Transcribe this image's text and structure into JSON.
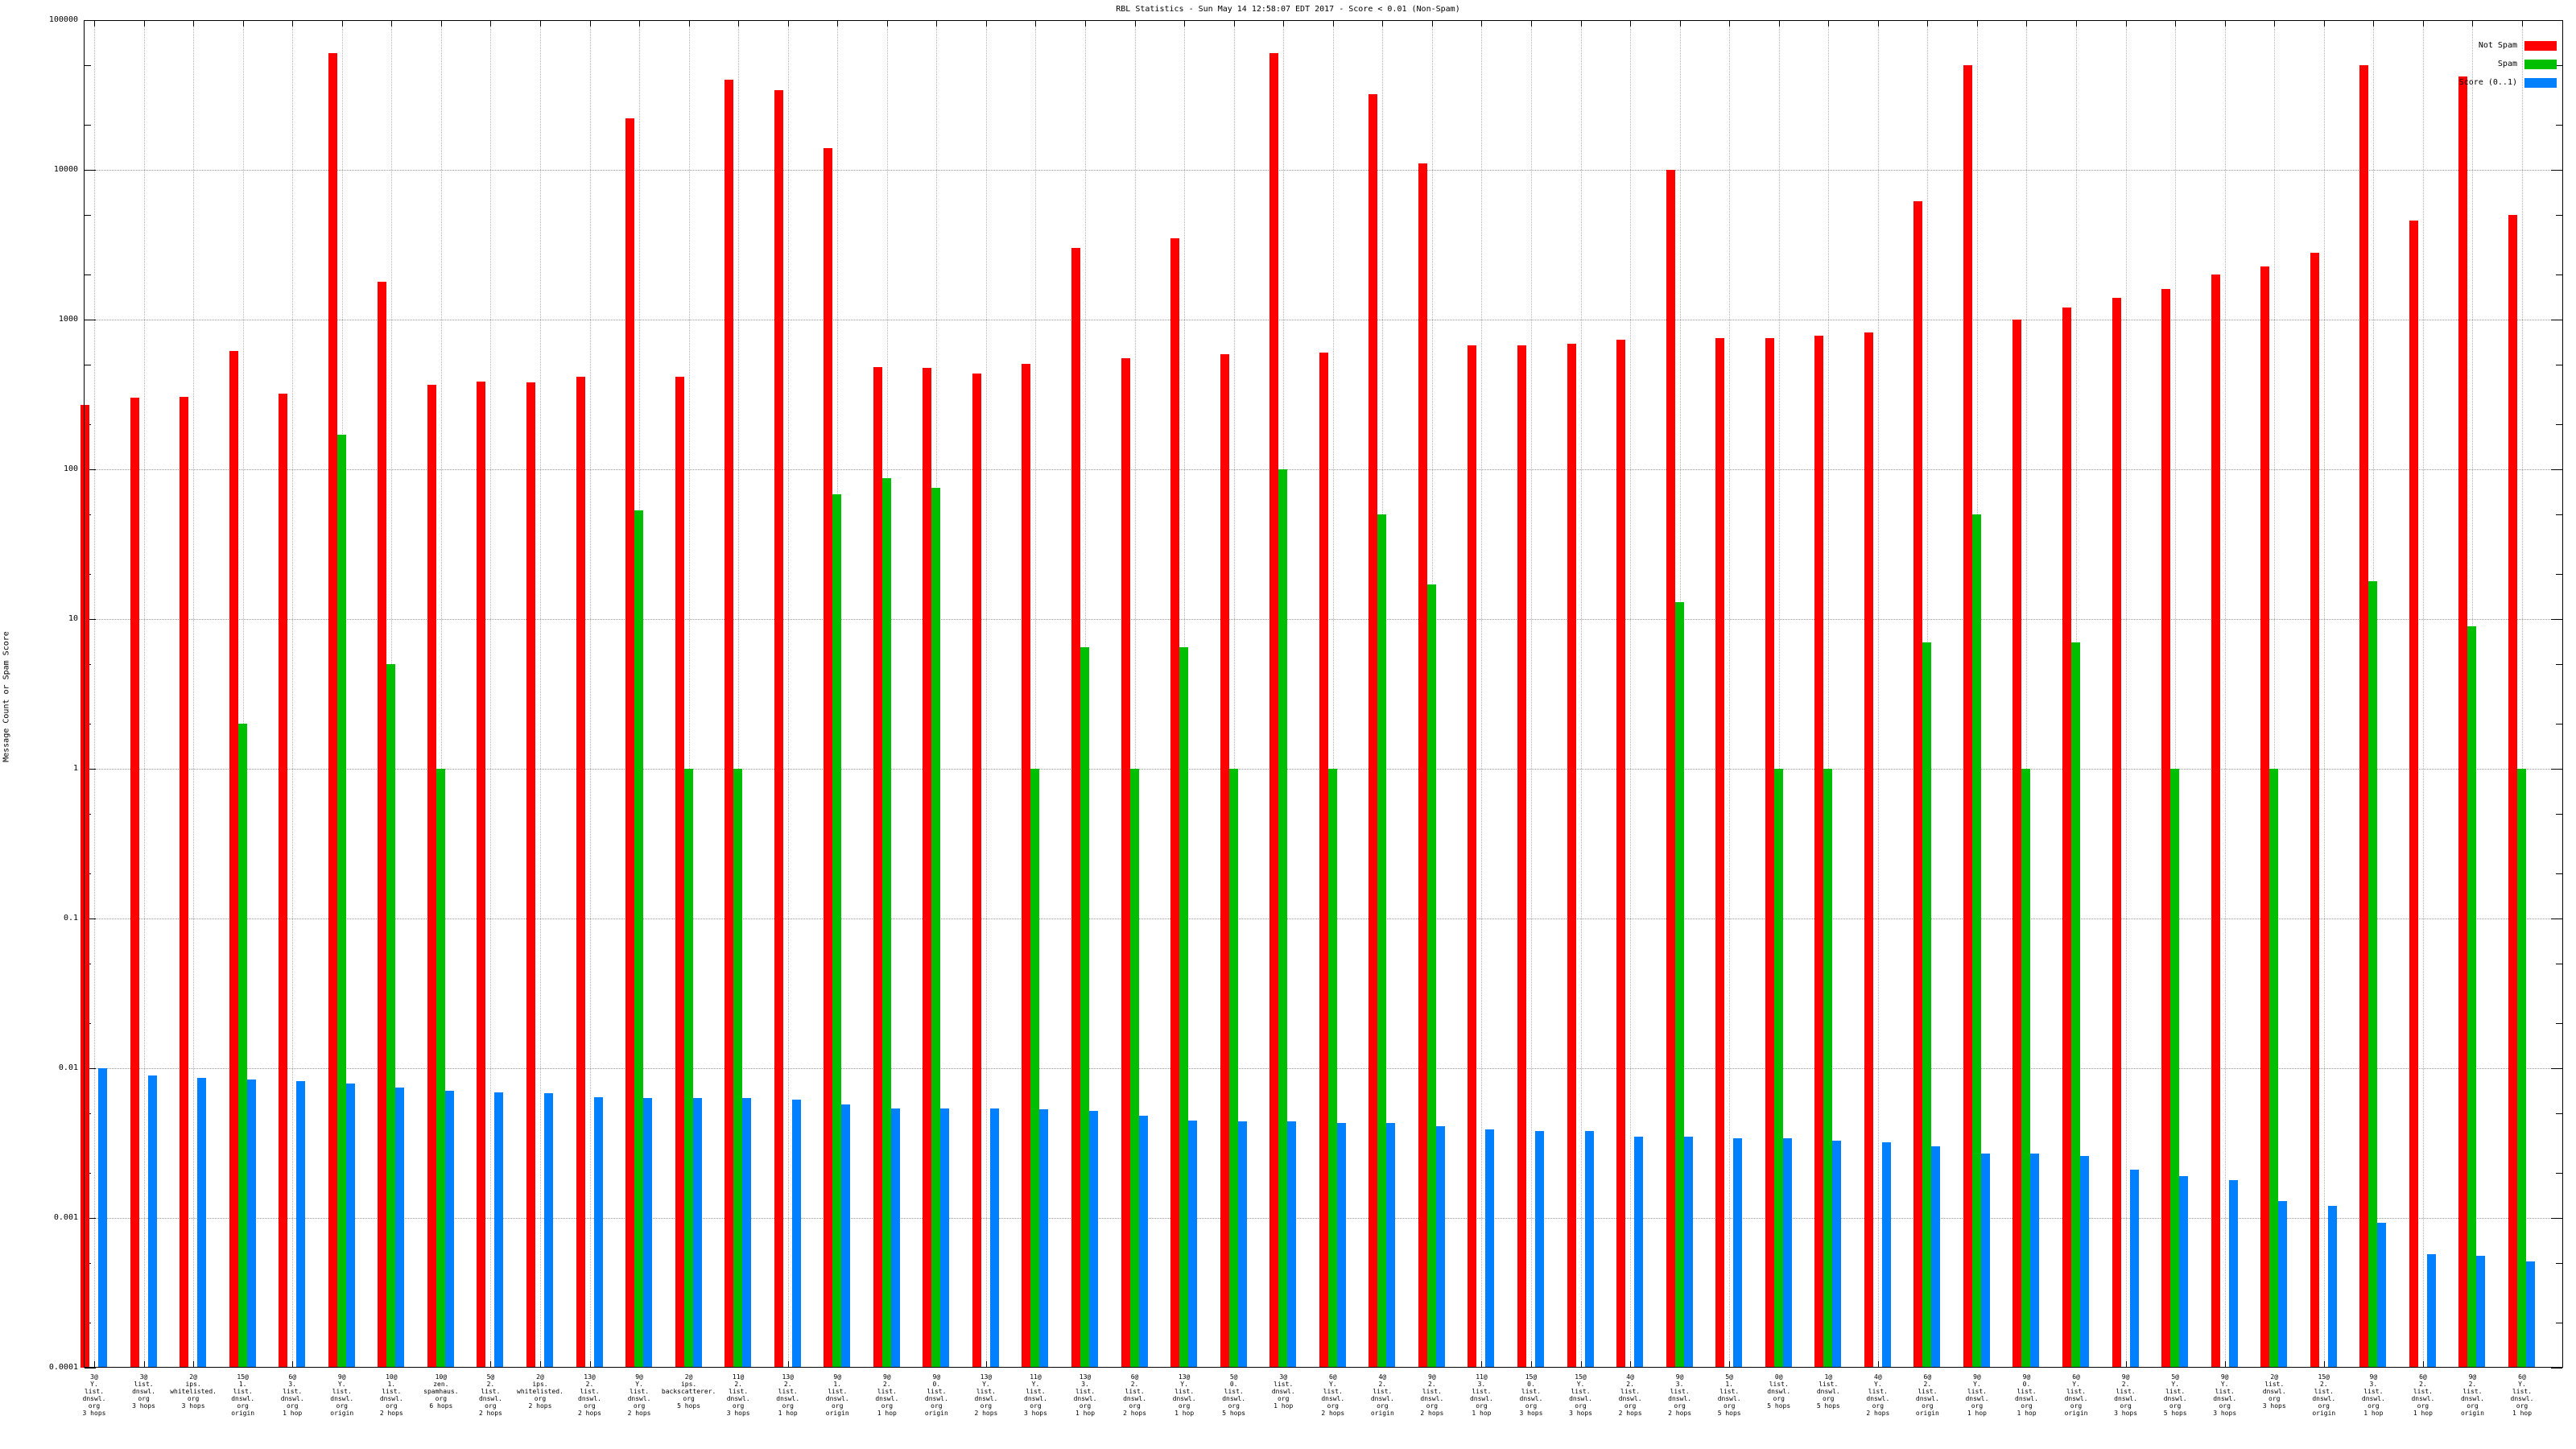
{
  "title": "RBL Statistics - Sun May 14 12:58:07 EDT 2017 - Score < 0.01 (Non-Spam)",
  "chart_data": {
    "type": "bar",
    "title": "RBL Statistics - Sun May 14 12:58:07 EDT 2017 - Score < 0.01 (Non-Spam)",
    "ylabel": "Message Count or Spam Score",
    "xlabel": "",
    "y_scale": "log",
    "ylim": [
      0.0001,
      100000
    ],
    "y_ticks": [
      "100000",
      "10000",
      "1000",
      "100",
      "10",
      "1",
      "0.1",
      "0.01",
      "0.001",
      "0.0001"
    ],
    "grid": true,
    "legend_position": "top-right",
    "series": [
      {
        "key": "not_spam",
        "name": "Not Spam",
        "color": "#ff0000"
      },
      {
        "key": "spam",
        "name": "Spam",
        "color": "#00bf00"
      },
      {
        "key": "score",
        "name": "Score (0..1)",
        "color": "#0080ff"
      }
    ],
    "groups": [
      {
        "label": [
          "3@",
          "Y.",
          "list.",
          "dnswl.",
          "org",
          "3 hops"
        ],
        "not_spam": 270,
        "spam": null,
        "score": 0.01
      },
      {
        "label": [
          "3@",
          "list.",
          "dnswl.",
          "org",
          "3 hops"
        ],
        "not_spam": 300,
        "spam": null,
        "score": 0.0089
      },
      {
        "label": [
          "2@",
          "ips.",
          "whitelisted.",
          "org",
          "3 hops"
        ],
        "not_spam": 305,
        "spam": null,
        "score": 0.0086
      },
      {
        "label": [
          "15@",
          "1.",
          "list.",
          "dnswl.",
          "org",
          "origin"
        ],
        "not_spam": 620,
        "spam": 2,
        "score": 0.0084
      },
      {
        "label": [
          "6@",
          "3.",
          "list.",
          "dnswl.",
          "org",
          "1 hop"
        ],
        "not_spam": 320,
        "spam": null,
        "score": 0.0082
      },
      {
        "label": [
          "9@",
          "Y.",
          "list.",
          "dnswl.",
          "org",
          "origin"
        ],
        "not_spam": 60000,
        "spam": 170,
        "score": 0.0079
      },
      {
        "label": [
          "10@",
          "1.",
          "list.",
          "dnswl.",
          "org",
          "2 hops"
        ],
        "not_spam": 1800,
        "spam": 5,
        "score": 0.0074
      },
      {
        "label": [
          "10@",
          "zen.",
          "spamhaus.",
          "org",
          "6 hops"
        ],
        "not_spam": 365,
        "spam": 1,
        "score": 0.0071
      },
      {
        "label": [
          "5@",
          "2.",
          "list.",
          "dnswl.",
          "org",
          "2 hops"
        ],
        "not_spam": 385,
        "spam": null,
        "score": 0.0069
      },
      {
        "label": [
          "2@",
          "ips.",
          "whitelisted.",
          "org",
          "2 hops"
        ],
        "not_spam": 380,
        "spam": null,
        "score": 0.0068
      },
      {
        "label": [
          "13@",
          "2.",
          "list.",
          "dnswl.",
          "org",
          "2 hops"
        ],
        "not_spam": 415,
        "spam": null,
        "score": 0.0064
      },
      {
        "label": [
          "9@",
          "Y.",
          "list.",
          "dnswl.",
          "org",
          "2 hops"
        ],
        "not_spam": 22000,
        "spam": 53,
        "score": 0.0063
      },
      {
        "label": [
          "2@",
          "ips.",
          "backscatterer.",
          "org",
          "5 hops"
        ],
        "not_spam": 415,
        "spam": 1,
        "score": 0.0063
      },
      {
        "label": [
          "11@",
          "2.",
          "list.",
          "dnswl.",
          "org",
          "3 hops"
        ],
        "not_spam": 40000,
        "spam": 1,
        "score": 0.0063
      },
      {
        "label": [
          "13@",
          "2.",
          "list.",
          "dnswl.",
          "org",
          "1 hop"
        ],
        "not_spam": 34000,
        "spam": null,
        "score": 0.0062
      },
      {
        "label": [
          "9@",
          "1.",
          "list.",
          "dnswl.",
          "org",
          "origin"
        ],
        "not_spam": 14000,
        "spam": 68,
        "score": 0.0057
      },
      {
        "label": [
          "9@",
          "2.",
          "list.",
          "dnswl.",
          "org",
          "1 hop"
        ],
        "not_spam": 480,
        "spam": 87,
        "score": 0.0054
      },
      {
        "label": [
          "9@",
          "0.",
          "list.",
          "dnswl.",
          "org",
          "origin"
        ],
        "not_spam": 475,
        "spam": 75,
        "score": 0.0054
      },
      {
        "label": [
          "13@",
          "Y.",
          "list.",
          "dnswl.",
          "org",
          "2 hops"
        ],
        "not_spam": 435,
        "spam": null,
        "score": 0.0054
      },
      {
        "label": [
          "11@",
          "Y.",
          "list.",
          "dnswl.",
          "org",
          "3 hops"
        ],
        "not_spam": 505,
        "spam": 1,
        "score": 0.0053
      },
      {
        "label": [
          "13@",
          "3.",
          "list.",
          "dnswl.",
          "org",
          "1 hop"
        ],
        "not_spam": 3000,
        "spam": 6.5,
        "score": 0.0052
      },
      {
        "label": [
          "6@",
          "2.",
          "list.",
          "dnswl.",
          "org",
          "2 hops"
        ],
        "not_spam": 550,
        "spam": 1,
        "score": 0.0048
      },
      {
        "label": [
          "13@",
          "Y.",
          "list.",
          "dnswl.",
          "org",
          "1 hop"
        ],
        "not_spam": 3500,
        "spam": 6.5,
        "score": 0.0045
      },
      {
        "label": [
          "5@",
          "0.",
          "list.",
          "dnswl.",
          "org",
          "5 hops"
        ],
        "not_spam": 590,
        "spam": 1,
        "score": 0.0044
      },
      {
        "label": [
          "3@",
          "list.",
          "dnswl.",
          "org",
          "1 hop"
        ],
        "not_spam": 60000,
        "spam": 100,
        "score": 0.0044
      },
      {
        "label": [
          "6@",
          "Y.",
          "list.",
          "dnswl.",
          "org",
          "2 hops"
        ],
        "not_spam": 600,
        "spam": 1,
        "score": 0.0043
      },
      {
        "label": [
          "4@",
          "2.",
          "list.",
          "dnswl.",
          "org",
          "origin"
        ],
        "not_spam": 32000,
        "spam": 50,
        "score": 0.0043
      },
      {
        "label": [
          "9@",
          "2.",
          "list.",
          "dnswl.",
          "org",
          "2 hops"
        ],
        "not_spam": 11000,
        "spam": 17,
        "score": 0.0041
      },
      {
        "label": [
          "11@",
          "3.",
          "list.",
          "dnswl.",
          "org",
          "1 hop"
        ],
        "not_spam": 670,
        "spam": null,
        "score": 0.0039
      },
      {
        "label": [
          "15@",
          "0.",
          "list.",
          "dnswl.",
          "org",
          "3 hops"
        ],
        "not_spam": 675,
        "spam": null,
        "score": 0.0038
      },
      {
        "label": [
          "15@",
          "Y.",
          "list.",
          "dnswl.",
          "org",
          "3 hops"
        ],
        "not_spam": 690,
        "spam": null,
        "score": 0.0038
      },
      {
        "label": [
          "4@",
          "2.",
          "list.",
          "dnswl.",
          "org",
          "2 hops"
        ],
        "not_spam": 730,
        "spam": null,
        "score": 0.0035
      },
      {
        "label": [
          "9@",
          "3.",
          "list.",
          "dnswl.",
          "org",
          "2 hops"
        ],
        "not_spam": 10000,
        "spam": 13,
        "score": 0.0035
      },
      {
        "label": [
          "5@",
          "1.",
          "list.",
          "dnswl.",
          "org",
          "5 hops"
        ],
        "not_spam": 750,
        "spam": null,
        "score": 0.0034
      },
      {
        "label": [
          "0@",
          "list.",
          "dnswl.",
          "org",
          "5 hops"
        ],
        "not_spam": 750,
        "spam": 1,
        "score": 0.0034
      },
      {
        "label": [
          "1@",
          "list.",
          "dnswl.",
          "org",
          "5 hops"
        ],
        "not_spam": 780,
        "spam": 1,
        "score": 0.0033
      },
      {
        "label": [
          "4@",
          "Y.",
          "list.",
          "dnswl.",
          "org",
          "2 hops"
        ],
        "not_spam": 820,
        "spam": null,
        "score": 0.0032
      },
      {
        "label": [
          "6@",
          "2.",
          "list.",
          "dnswl.",
          "org",
          "origin"
        ],
        "not_spam": 6200,
        "spam": 7,
        "score": 0.003
      },
      {
        "label": [
          "9@",
          "Y.",
          "list.",
          "dnswl.",
          "org",
          "1 hop"
        ],
        "not_spam": 50000,
        "spam": 50,
        "score": 0.0027
      },
      {
        "label": [
          "9@",
          "0.",
          "list.",
          "dnswl.",
          "org",
          "1 hop"
        ],
        "not_spam": 1000,
        "spam": 1,
        "score": 0.0027
      },
      {
        "label": [
          "6@",
          "Y.",
          "list.",
          "dnswl.",
          "org",
          "origin"
        ],
        "not_spam": 1200,
        "spam": 7,
        "score": 0.0026
      },
      {
        "label": [
          "9@",
          "2.",
          "list.",
          "dnswl.",
          "org",
          "3 hops"
        ],
        "not_spam": 1400,
        "spam": null,
        "score": 0.0021
      },
      {
        "label": [
          "5@",
          "Y.",
          "list.",
          "dnswl.",
          "org",
          "5 hops"
        ],
        "not_spam": 1600,
        "spam": 1,
        "score": 0.0019
      },
      {
        "label": [
          "9@",
          "Y.",
          "list.",
          "dnswl.",
          "org",
          "3 hops"
        ],
        "not_spam": 2000,
        "spam": null,
        "score": 0.0018
      },
      {
        "label": [
          "2@",
          "list.",
          "dnswl.",
          "org",
          "3 hops"
        ],
        "not_spam": 2250,
        "spam": 1,
        "score": 0.0013
      },
      {
        "label": [
          "15@",
          "2.",
          "list.",
          "dnswl.",
          "org",
          "origin"
        ],
        "not_spam": 2800,
        "spam": null,
        "score": 0.0012
      },
      {
        "label": [
          "9@",
          "3.",
          "list.",
          "dnswl.",
          "org",
          "1 hop"
        ],
        "not_spam": 50000,
        "spam": 18,
        "score": 0.00093
      },
      {
        "label": [
          "6@",
          "2.",
          "list.",
          "dnswl.",
          "org",
          "1 hop"
        ],
        "not_spam": 4600,
        "spam": null,
        "score": 0.00057
      },
      {
        "label": [
          "9@",
          "2.",
          "list.",
          "dnswl.",
          "org",
          "origin"
        ],
        "not_spam": 42000,
        "spam": 9,
        "score": 0.00056
      },
      {
        "label": [
          "6@",
          "Y.",
          "list.",
          "dnswl.",
          "org",
          "1 hop"
        ],
        "not_spam": 5000,
        "spam": 1,
        "score": 0.00051
      }
    ]
  }
}
